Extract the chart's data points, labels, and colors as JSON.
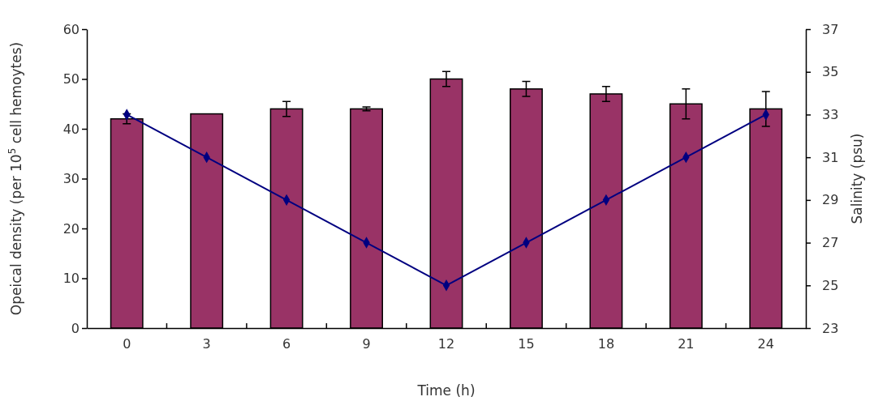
{
  "chart_data": {
    "type": "bar",
    "xlabel": "Time (h)",
    "ylabel": "Opeical density (per 10$^{5}$ cell hemoytes)",
    "y2label": "Salinity (psu)",
    "categories": [
      "0",
      "3",
      "6",
      "9",
      "12",
      "15",
      "18",
      "21",
      "24"
    ],
    "series": [
      {
        "color": "#993366",
        "values": [
          42,
          43,
          44,
          44,
          50,
          48,
          47,
          45,
          44
        ],
        "errors": [
          1,
          null,
          1.5,
          0.4,
          1.5,
          1.5,
          1.5,
          3,
          3.5
        ]
      },
      {
        "type": "line",
        "axis": "y2",
        "color": "#000080",
        "marker": "diamond",
        "values": [
          33,
          31,
          29,
          27,
          25,
          27,
          29,
          31,
          33
        ]
      }
    ],
    "ylim": [
      0,
      60
    ],
    "yticks": [
      0,
      10,
      20,
      30,
      40,
      50,
      60
    ],
    "y2lim": [
      23,
      37
    ],
    "y2ticks": [
      23,
      25,
      27,
      29,
      31,
      33,
      35,
      37
    ],
    "grid": false
  }
}
